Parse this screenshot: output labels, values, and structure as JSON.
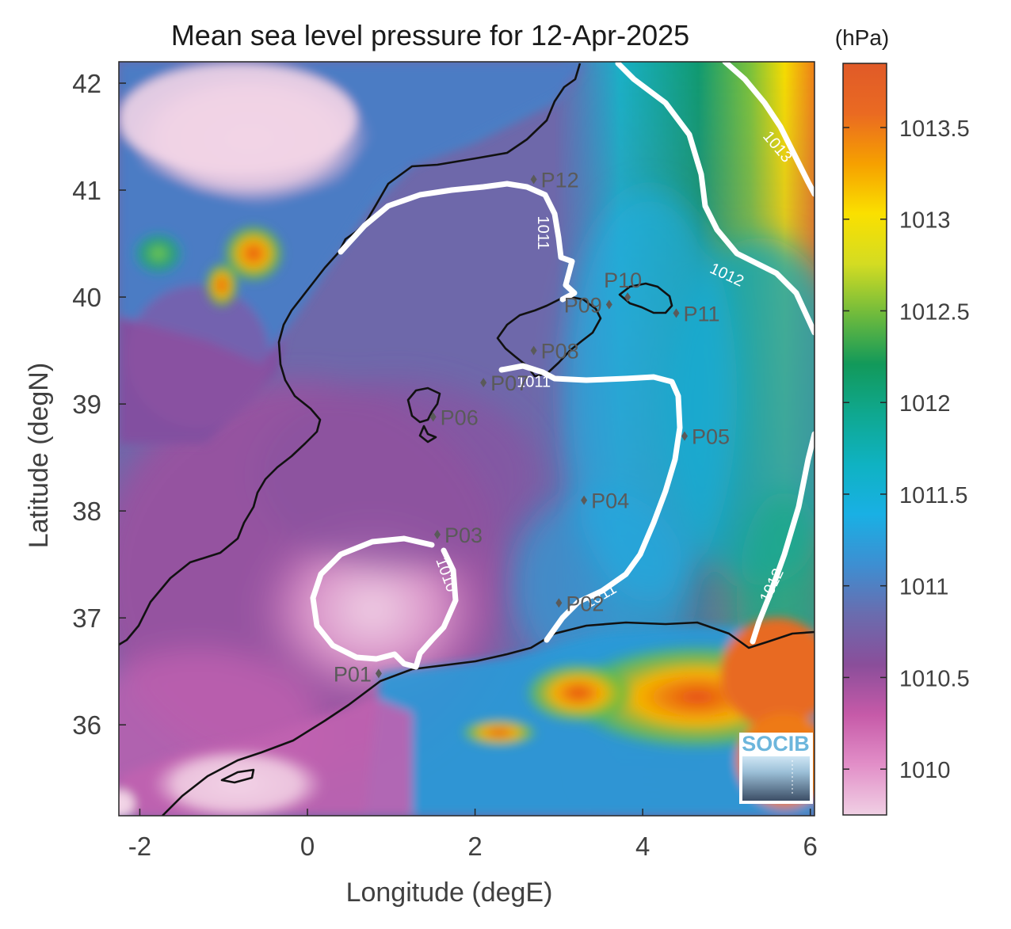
{
  "title": "Mean sea level pressure for 12-Apr-2025",
  "axes": {
    "xlabel": "Longitude (degE)",
    "ylabel": "Latitude (degN)",
    "xlim": [
      -2.25,
      6.05
    ],
    "ylim": [
      35.15,
      42.2
    ],
    "xticks": [
      {
        "value": -2,
        "label": "-2"
      },
      {
        "value": 0,
        "label": "0"
      },
      {
        "value": 2,
        "label": "2"
      },
      {
        "value": 4,
        "label": "4"
      },
      {
        "value": 6,
        "label": "6"
      }
    ],
    "yticks": [
      {
        "value": 36,
        "label": "36"
      },
      {
        "value": 37,
        "label": "37"
      },
      {
        "value": 38,
        "label": "38"
      },
      {
        "value": 39,
        "label": "39"
      },
      {
        "value": 40,
        "label": "40"
      },
      {
        "value": 41,
        "label": "41"
      },
      {
        "value": 42,
        "label": "42"
      }
    ]
  },
  "colorbar": {
    "unit": "(hPa)",
    "min": 1009.75,
    "max": 1013.85,
    "ticks": [
      {
        "value": 1010,
        "label": "1010"
      },
      {
        "value": 1010.5,
        "label": "1010.5"
      },
      {
        "value": 1011,
        "label": "1011"
      },
      {
        "value": 1011.5,
        "label": "1011.5"
      },
      {
        "value": 1012,
        "label": "1012"
      },
      {
        "value": 1012.5,
        "label": "1012.5"
      },
      {
        "value": 1013,
        "label": "1013"
      },
      {
        "value": 1013.5,
        "label": "1013.5"
      }
    ],
    "colors": [
      "#f0d0e4",
      "#e28fc8",
      "#c65aa8",
      "#8a4e9a",
      "#6a6cae",
      "#3d8fd2",
      "#19b0e4",
      "#0fb2c2",
      "#0fa890",
      "#12995a",
      "#70bb3c",
      "#d4dc22",
      "#fae000",
      "#f6a000",
      "#ea6a22",
      "#e05a28"
    ]
  },
  "contour_labels": [
    {
      "text": "1010",
      "lon": 1.65,
      "lat": 37.4,
      "angle": 70
    },
    {
      "text": "1011",
      "lon": 2.8,
      "lat": 40.6,
      "angle": 90
    },
    {
      "text": "1011",
      "lon": 2.7,
      "lat": 39.2,
      "angle": 0
    },
    {
      "text": "1011",
      "lon": 3.5,
      "lat": 37.2,
      "angle": -30
    },
    {
      "text": "1012",
      "lon": 5.0,
      "lat": 40.2,
      "angle": 25
    },
    {
      "text": "1012",
      "lon": 5.55,
      "lat": 37.3,
      "angle": -65
    },
    {
      "text": "1013",
      "lon": 5.6,
      "lat": 41.4,
      "angle": 50
    }
  ],
  "stations": [
    {
      "id": "P01",
      "lon": 0.85,
      "lat": 36.48,
      "label_side": "left"
    },
    {
      "id": "P02",
      "lon": 3.0,
      "lat": 37.14,
      "label_side": "right"
    },
    {
      "id": "P03",
      "lon": 1.55,
      "lat": 37.78,
      "label_side": "right"
    },
    {
      "id": "P04",
      "lon": 3.3,
      "lat": 38.1,
      "label_side": "right"
    },
    {
      "id": "P05",
      "lon": 4.5,
      "lat": 38.7,
      "label_side": "right"
    },
    {
      "id": "P06",
      "lon": 1.5,
      "lat": 38.88,
      "label_side": "right"
    },
    {
      "id": "P07",
      "lon": 2.1,
      "lat": 39.2,
      "label_side": "right"
    },
    {
      "id": "P08",
      "lon": 2.7,
      "lat": 39.5,
      "label_side": "right"
    },
    {
      "id": "P09",
      "lon": 3.6,
      "lat": 39.93,
      "label_side": "left"
    },
    {
      "id": "P10",
      "lon": 3.82,
      "lat": 40.0,
      "label_side": "above"
    },
    {
      "id": "P11",
      "lon": 4.4,
      "lat": 39.85,
      "label_side": "right"
    },
    {
      "id": "P12",
      "lon": 2.7,
      "lat": 41.1,
      "label_side": "right"
    }
  ],
  "logo": {
    "text": "SOCIB"
  }
}
